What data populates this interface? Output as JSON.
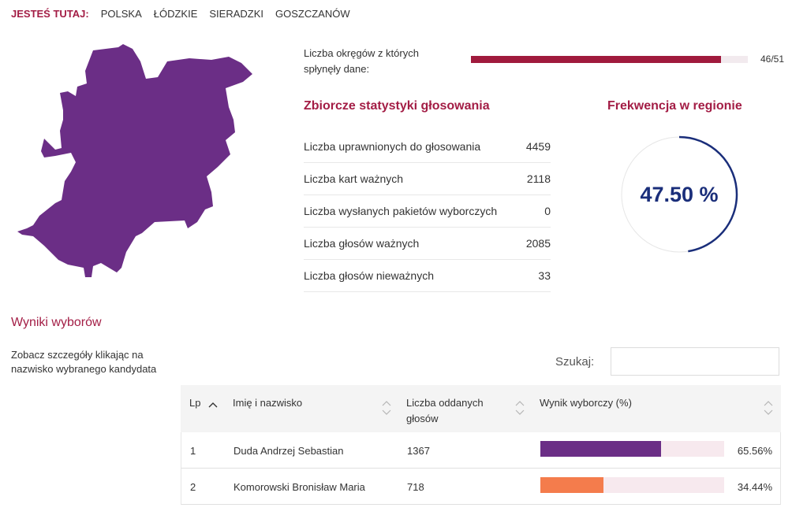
{
  "breadcrumb": {
    "label": "JESTEŚ TUTAJ:",
    "items": [
      "POLSKA",
      "ŁÓDZKIE",
      "SIERADZKI",
      "GOSZCZANÓW"
    ]
  },
  "colors": {
    "accent": "#a31d45",
    "progress": "#a01a3d",
    "map_fill": "#6b2e86",
    "turnout": "#1a2e7a",
    "candidate1": "#6b2e86",
    "candidate2": "#f47c4c"
  },
  "progress": {
    "label": "Liczba okręgów z których spłynęły dane:",
    "received": 46,
    "total": 51,
    "count_text": "46/51"
  },
  "stats": {
    "title": "Zbiorcze statystyki głosowania",
    "rows": [
      {
        "label": "Liczba uprawnionych do głosowania",
        "value": "4459"
      },
      {
        "label": "Liczba kart ważnych",
        "value": "2118"
      },
      {
        "label": "Liczba wysłanych pakietów wyborczych",
        "value": "0"
      },
      {
        "label": "Liczba głosów ważnych",
        "value": "2085"
      },
      {
        "label": "Liczba głosów nieważnych",
        "value": "33"
      }
    ]
  },
  "turnout": {
    "title": "Frekwencja w regionie",
    "value_text": "47.50 %",
    "fraction": 0.475
  },
  "results": {
    "title": "Wyniki wyborów",
    "hint": "Zobacz szczegóły klikając na nazwisko wybranego kandydata",
    "search_label": "Szukaj:",
    "search_value": "",
    "columns": {
      "lp": "Lp",
      "name": "Imię i nazwisko",
      "votes": "Liczba oddanych głosów",
      "result": "Wynik wyborczy (%)"
    },
    "rows": [
      {
        "lp": "1",
        "name": "Duda Andrzej Sebastian",
        "votes": "1367",
        "percent_text": "65.56%",
        "percent": 65.56,
        "color": "#6b2e86"
      },
      {
        "lp": "2",
        "name": "Komorowski Bronisław Maria",
        "votes": "718",
        "percent_text": "34.44%",
        "percent": 34.44,
        "color": "#f47c4c"
      }
    ]
  },
  "icons": {
    "map": "region-map-icon",
    "sort_asc": "sort-ascending-icon",
    "sort": "sort-both-icon"
  }
}
